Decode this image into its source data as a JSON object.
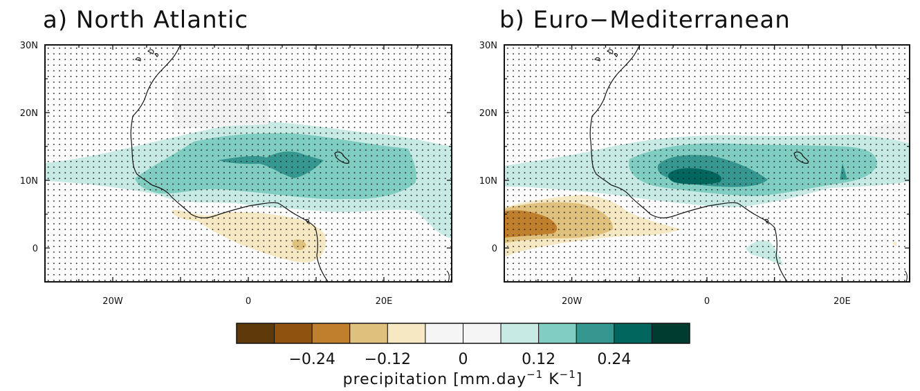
{
  "panels": [
    {
      "id": "a",
      "title": "a) North Atlantic",
      "x_ticks": [
        {
          "lon": -20,
          "label": "20W"
        },
        {
          "lon": 0,
          "label": "0"
        },
        {
          "lon": 20,
          "label": "20E"
        }
      ],
      "y_ticks": [
        {
          "lat": 30,
          "label": "30N"
        },
        {
          "lat": 20,
          "label": "20N"
        },
        {
          "lat": 10,
          "label": "10N"
        },
        {
          "lat": 0,
          "label": "0"
        }
      ]
    },
    {
      "id": "b",
      "title": "b) Euro−Mediterranean",
      "x_ticks": [
        {
          "lon": -20,
          "label": "20W"
        },
        {
          "lon": 0,
          "label": "0"
        },
        {
          "lon": 20,
          "label": "20E"
        }
      ],
      "y_ticks": [
        {
          "lat": 30,
          "label": "30N"
        },
        {
          "lat": 20,
          "label": "20N"
        },
        {
          "lat": 10,
          "label": "10N"
        },
        {
          "lat": 0,
          "label": "0"
        }
      ]
    }
  ],
  "map_extent": {
    "lon": [
      -30,
      30
    ],
    "lat": [
      -5,
      30
    ]
  },
  "colorbar": {
    "colors": [
      "#5e3a0b",
      "#8f520f",
      "#bf7f2c",
      "#dfc17d",
      "#f6e8c3",
      "#f5f5f5",
      "#f5f5f5",
      "#c7eae5",
      "#80cdc1",
      "#35978f",
      "#01665e",
      "#003c30"
    ],
    "labels": [
      {
        "boundary": 2,
        "text": "−0.24"
      },
      {
        "boundary": 4,
        "text": "−0.12"
      },
      {
        "boundary": 6,
        "text": "0"
      },
      {
        "boundary": 8,
        "text": "0.12"
      },
      {
        "boundary": 10,
        "text": "0.24"
      }
    ],
    "title_text": "precipitation [mm.day",
    "title_sup1": "−1",
    "title_mid": " K",
    "title_sup2": "−1",
    "title_end": "]"
  }
}
